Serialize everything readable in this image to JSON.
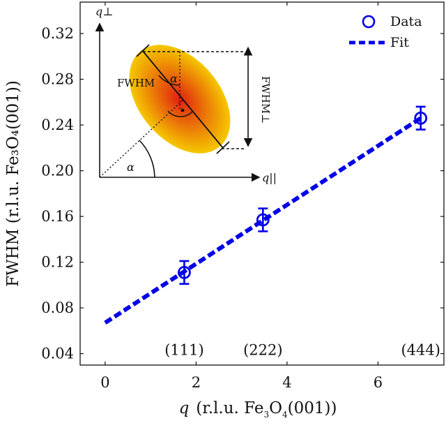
{
  "chart_data": {
    "type": "scatter",
    "title": "",
    "xlabel_parts": {
      "q": "q",
      "rest": "(r.l.u. Fe",
      "sub1": "3",
      "mid": "O",
      "sub2": "4",
      "end": "(001))"
    },
    "ylabel": "FWHM (r.l.u. Fe₃O₄(001))",
    "xlim": [
      -0.55,
      7.45
    ],
    "ylim": [
      0.03,
      0.3475
    ],
    "xticks": [
      0,
      2,
      4,
      6
    ],
    "xtick_labels": [
      "0",
      "2",
      "4",
      "6"
    ],
    "yticks": [
      0.04,
      0.08,
      0.12,
      0.16,
      0.2,
      0.24,
      0.28,
      0.32
    ],
    "ytick_labels": [
      "0.04",
      "0.08",
      "0.12",
      "0.16",
      "0.20",
      "0.24",
      "0.28",
      "0.32"
    ],
    "grid": false,
    "legend_position": "top-right",
    "series": [
      {
        "name": "Data",
        "color": "#0000e6",
        "marker": "open-circle",
        "points": [
          {
            "x": 1.74,
            "y": 0.111,
            "err": 0.01
          },
          {
            "x": 3.47,
            "y": 0.157,
            "err": 0.01
          },
          {
            "x": 6.94,
            "y": 0.246,
            "err": 0.01
          }
        ]
      },
      {
        "name": "Fit",
        "color": "#0000e6",
        "line": "dashed",
        "x": [
          0,
          6.94
        ],
        "y": [
          0.067,
          0.246
        ]
      }
    ],
    "annotations": [
      {
        "text": "(111)",
        "x": 1.74,
        "y": 0.042
      },
      {
        "text": "(222)",
        "x": 3.47,
        "y": 0.042
      },
      {
        "text": "(444)",
        "x": 6.94,
        "y": 0.042
      }
    ],
    "inset": {
      "y_axis_label": "q⊥",
      "x_axis_label": "q||",
      "fwhm_label": "FWHM",
      "fwhm_perp_label": "FWHM⊥",
      "alpha_label": "α",
      "ellipse_colors": [
        "#e02010",
        "#f5c800"
      ]
    }
  }
}
